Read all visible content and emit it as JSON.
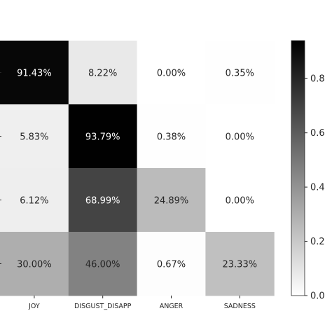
{
  "chart_data": {
    "type": "heatmap",
    "columns": [
      "JOY",
      "DISGUST_DISAPP",
      "ANGER",
      "SADNESS"
    ],
    "values": [
      [
        0.9143,
        0.0822,
        0.0,
        0.0035
      ],
      [
        0.0583,
        0.9379,
        0.0038,
        0.0
      ],
      [
        0.0612,
        0.6899,
        0.2489,
        0.0
      ],
      [
        0.3,
        0.46,
        0.0067,
        0.2333
      ]
    ],
    "cell_labels": [
      [
        "91.43%",
        "8.22%",
        "0.00%",
        "0.35%"
      ],
      [
        "5.83%",
        "93.79%",
        "0.38%",
        "0.00%"
      ],
      [
        "6.12%",
        "68.99%",
        "24.89%",
        "0.00%"
      ],
      [
        "30.00%",
        "46.00%",
        "0.67%",
        "23.33%"
      ]
    ],
    "colormap": "Greys",
    "colorbar": {
      "range": [
        0,
        0.94
      ],
      "ticks": [
        0.0,
        0.2,
        0.4,
        0.6,
        0.8
      ],
      "tick_labels": [
        "0.0",
        "0.2",
        "0.4",
        "0.6",
        "0.8"
      ]
    }
  }
}
